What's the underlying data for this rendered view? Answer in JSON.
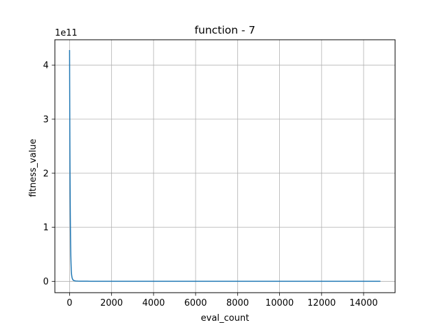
{
  "chart_data": {
    "type": "line",
    "title": "function - 7",
    "xlabel": "eval_count",
    "ylabel": "fitness_value",
    "y_offset_label": "1e11",
    "xlim": [
      -700,
      15500
    ],
    "ylim": [
      -0.21,
      4.47
    ],
    "x_ticks": [
      0,
      2000,
      4000,
      6000,
      8000,
      10000,
      12000,
      14000
    ],
    "x_tick_labels": [
      "0",
      "2000",
      "4000",
      "6000",
      "8000",
      "10000",
      "12000",
      "14000"
    ],
    "y_ticks": [
      0,
      1,
      2,
      3,
      4
    ],
    "y_tick_labels": [
      "0",
      "1",
      "2",
      "3",
      "4"
    ],
    "grid": true,
    "series": [
      {
        "color": "#1f77b4",
        "x": [
          0,
          5,
          10,
          15,
          20,
          25,
          30,
          35,
          40,
          45,
          50,
          55,
          60,
          65,
          70,
          75,
          80,
          90,
          100,
          115,
          130,
          150,
          175,
          200,
          250,
          300,
          400,
          500,
          700,
          1000,
          2000,
          4000,
          8000,
          12000,
          14800
        ],
        "y": [
          4.28,
          3.6,
          3.0,
          2.5,
          2.08,
          1.73,
          1.44,
          1.2,
          1.0,
          0.83,
          0.69,
          0.57,
          0.47,
          0.39,
          0.32,
          0.26,
          0.21,
          0.15,
          0.11,
          0.075,
          0.052,
          0.034,
          0.022,
          0.015,
          0.009,
          0.006,
          0.004,
          0.003,
          0.002,
          0.0015,
          0.001,
          0.0008,
          0.0006,
          0.0005,
          0.0005
        ]
      }
    ]
  }
}
